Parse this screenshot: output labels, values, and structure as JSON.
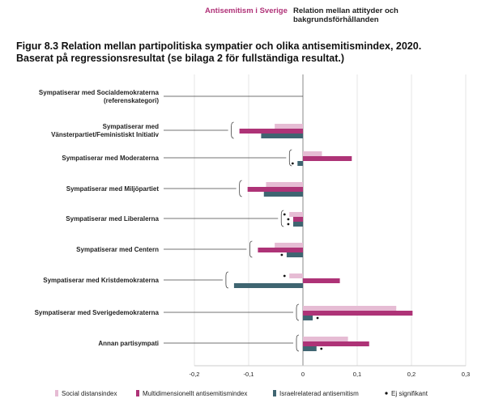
{
  "header": {
    "left": "Antisemitism i Sverige",
    "right": "Relation mellan attityder och bakgrundsförhållanden"
  },
  "title": {
    "line1": "Figur 8.3 Relation mellan partipolitiska sympatier och olika antisemitismindex, 2020.",
    "line2": "Baserat på regressionsresultat (se bilaga 2 för fullständiga resultat.)"
  },
  "colors": {
    "social": "#e6bcd4",
    "multi": "#ae3377",
    "israel": "#3f6571",
    "dot": "#111111",
    "grid": "#e6e6e6",
    "axis": "#444444"
  },
  "chart_data": {
    "type": "bar",
    "orientation": "horizontal",
    "xlim": [
      -0.2,
      0.3
    ],
    "xticks": [
      "-0,2",
      "-0,1",
      "0",
      "0,1",
      "0,2",
      "0,3"
    ],
    "xtick_values": [
      -0.2,
      -0.1,
      0,
      0.1,
      0.2,
      0.3
    ],
    "grid": true,
    "legend_position": "bottom",
    "categories": [
      [
        "Sympatiserar med Socialdemokraterna",
        "(referenskategori)"
      ],
      [
        "Sympatiserar med",
        "Vänsterpartiet/Feministiskt Initiativ"
      ],
      [
        "Sympatiserar med Moderaterna"
      ],
      [
        "Sympatiserar med Miljöpartiet"
      ],
      [
        "Sympatiserar med Liberalerna"
      ],
      [
        "Sympatiserar med Centern"
      ],
      [
        "Sympatiserar med Kristdemokraterna"
      ],
      [
        "Sympatiserar med Sverigedemokraterna"
      ],
      [
        "Annan partisympati"
      ]
    ],
    "series": [
      {
        "name": "Social distansindex",
        "values": [
          null,
          -0.052,
          0.035,
          -0.068,
          -0.025,
          -0.052,
          -0.025,
          0.172,
          0.083
        ]
      },
      {
        "name": "Multidimensionellt antisemitismindex",
        "values": [
          null,
          -0.117,
          0.09,
          -0.102,
          -0.018,
          -0.083,
          0.068,
          0.202,
          0.122
        ]
      },
      {
        "name": "Israelrelaterad antisemitism",
        "values": [
          null,
          -0.077,
          -0.01,
          -0.072,
          -0.018,
          -0.03,
          -0.127,
          0.018,
          0.025
        ]
      }
    ],
    "not_significant": [
      [],
      [],
      [
        "Israelrelaterad antisemitism"
      ],
      [],
      [
        "Social distansindex",
        "Multidimensionellt antisemitismindex",
        "Israelrelaterad antisemitism"
      ],
      [
        "Israelrelaterad antisemitism"
      ],
      [
        "Social distansindex"
      ],
      [
        "Israelrelaterad antisemitism"
      ],
      [
        "Israelrelaterad antisemitism"
      ]
    ],
    "legend": [
      {
        "label": "Social distansindex",
        "kind": "bar"
      },
      {
        "label": "Multidimensionellt antisemitismindex",
        "kind": "bar"
      },
      {
        "label": "Israelrelaterad antisemitism",
        "kind": "bar"
      },
      {
        "label": "Ej signifikant",
        "kind": "dot"
      }
    ]
  }
}
